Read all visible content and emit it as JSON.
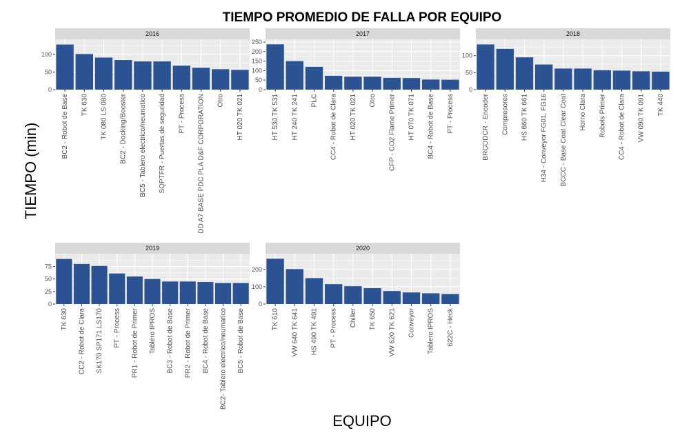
{
  "chart_data": {
    "type": "bar",
    "title": "TIEMPO PROMEDIO DE FALLA POR EQUIPO",
    "xlabel": "EQUIPO",
    "ylabel": "TIEMPO (min)",
    "bar_color": "#2B5393",
    "panel_background": "#EBEBEB",
    "strip_background": "#D9D9D9",
    "grid": true,
    "facets": [
      {
        "name": "2016",
        "categories": [
          "BC2 - Robot de Base",
          "TK 630",
          "TK 080 LS 080",
          "BC2 - Docking/Booster",
          "BC5 - Tablero electrico/neumatico",
          "SQPTFR - Puertas de seguridad",
          "PT - Process",
          "DD A7 BASE PDC PLA D&F CORPORATION",
          "Otro",
          "HT 020 TK 021"
        ],
        "values": [
          128,
          101,
          91,
          84,
          80,
          80,
          68,
          62,
          58,
          56
        ],
        "ylim": [
          0,
          135
        ],
        "yticks": [
          0,
          50,
          100
        ]
      },
      {
        "name": "2017",
        "categories": [
          "HT 530 TK 531",
          "HT 240 TK 241",
          "PLC",
          "CC4 - Robot de Clara",
          "HT 020 TK 021",
          "Otro",
          "CFP - CO2 Flame Primer",
          "HT 070 TK 071",
          "BC4 - Robot de Base",
          "PT - Process"
        ],
        "values": [
          238,
          150,
          120,
          73,
          68,
          68,
          62,
          61,
          53,
          52
        ],
        "ylim": [
          0,
          250
        ],
        "yticks": [
          0,
          50,
          100,
          150,
          200,
          250
        ]
      },
      {
        "name": "2018",
        "categories": [
          "BRCODCR - Encoder",
          "Compresores",
          "HS 660 TK 661",
          "H34 - Conveyor FG01, FG16",
          "BCCC - Base Coat Clear Coat",
          "Horno Clara",
          "Robots Primer",
          "CC4 - Robot de Clara",
          "VW 090 TK 091",
          "TK 440"
        ],
        "values": [
          133,
          120,
          95,
          74,
          62,
          62,
          57,
          56,
          54,
          53
        ],
        "ylim": [
          0,
          140
        ],
        "yticks": [
          0,
          50,
          100
        ]
      },
      {
        "name": "2019",
        "categories": [
          "TK 630",
          "CC2 - Robot de Clara",
          "SK170 SP171 LS170",
          "PT - Process",
          "PR1 - Robot de Primer",
          "Tablero IPROS",
          "BC3 - Robot de Base",
          "PR2 - Robot de Primer",
          "BC4 - Robot de Base",
          "BC2- Tablero electrico/neumatico",
          "BC5 - Robot de Base"
        ],
        "values": [
          90,
          80,
          76,
          61,
          55,
          50,
          45,
          45,
          44,
          42,
          42
        ],
        "ylim": [
          0,
          95
        ],
        "yticks": [
          0,
          25,
          50,
          75
        ]
      },
      {
        "name": "2020",
        "categories": [
          "TK 610",
          "VW 640 TK 641",
          "HS 490 TK 491",
          "PT - Process",
          "Chiller",
          "TK 650",
          "VW 620 TK 621",
          "Conveyor",
          "Tablero IPROS",
          "622C - Heck"
        ],
        "values": [
          262,
          202,
          150,
          115,
          103,
          92,
          75,
          67,
          62,
          58
        ],
        "ylim": [
          0,
          275
        ],
        "yticks": [
          0,
          100,
          200
        ]
      }
    ]
  }
}
